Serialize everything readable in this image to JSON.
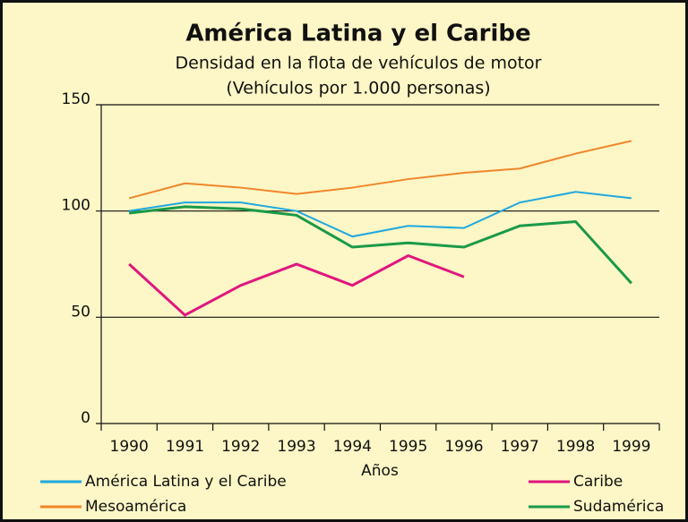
{
  "chart_data": {
    "type": "line",
    "title": "América Latina y el Caribe",
    "subtitle": [
      "Densidad en la flota de vehículos de motor",
      "(Vehículos por 1.000 personas)"
    ],
    "x_label": "Años",
    "categories": [
      "1990",
      "1991",
      "1992",
      "1993",
      "1994",
      "1995",
      "1996",
      "1997",
      "1998",
      "1999"
    ],
    "series": [
      {
        "name": "América Latina y el Caribe",
        "color": "#1fa8e0",
        "values": [
          100,
          104,
          104,
          100,
          88,
          93,
          92,
          104,
          109,
          106
        ]
      },
      {
        "name": "Caribe",
        "color": "#e0167f",
        "values": [
          75,
          51,
          65,
          75,
          65,
          79,
          69,
          null,
          null,
          null
        ]
      },
      {
        "name": "Mesoamérica",
        "color": "#f0862a",
        "values": [
          106,
          113,
          111,
          108,
          111,
          115,
          118,
          120,
          127,
          133
        ]
      },
      {
        "name": "Sudamérica",
        "color": "#1a9a48",
        "values": [
          99,
          102,
          101,
          98,
          83,
          85,
          83,
          93,
          95,
          66
        ]
      }
    ],
    "ylim": [
      0,
      150
    ],
    "yticks": [
      0,
      50,
      100,
      150
    ],
    "grid": true
  }
}
